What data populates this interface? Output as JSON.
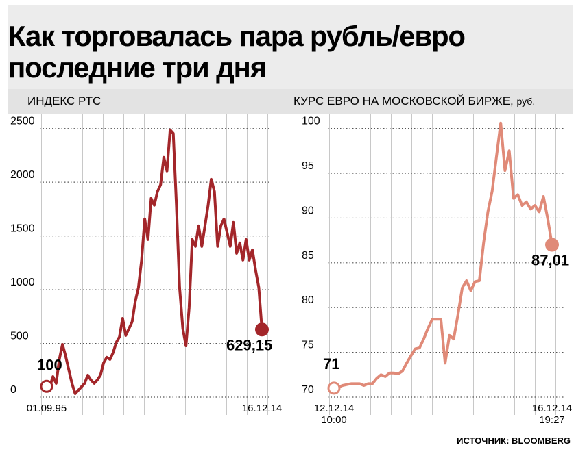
{
  "title": "Как торговалась пара рубль/евро последние три дня",
  "source": "ИСТОЧНИК: BLOOMBERG",
  "chart_data": [
    {
      "type": "line",
      "subtitle": "ИНДЕКС РТС",
      "color": "#a3262a",
      "categories": [
        "01.09.95",
        null,
        null,
        null,
        null,
        null,
        null,
        null,
        null,
        null,
        null,
        null,
        null,
        null,
        null,
        null,
        null,
        null,
        null,
        null,
        null,
        null,
        null,
        null,
        null,
        null,
        null,
        null,
        null,
        null,
        null,
        null,
        null,
        null,
        null,
        null,
        null,
        null,
        null,
        null,
        null,
        null,
        null,
        null,
        null,
        null,
        null,
        null,
        null,
        null,
        null,
        null,
        null,
        null,
        null,
        null,
        null,
        null,
        null,
        null,
        null,
        null,
        null,
        null,
        null,
        null,
        null,
        null,
        "16.12.14"
      ],
      "values": [
        100,
        96,
        191,
        128,
        351,
        491,
        383,
        255,
        128,
        32,
        64,
        96,
        128,
        204,
        159,
        128,
        159,
        204,
        319,
        370,
        351,
        415,
        510,
        561,
        733,
        574,
        638,
        702,
        893,
        1020,
        1276,
        1658,
        1467,
        1849,
        1786,
        1913,
        1977,
        2232,
        2105,
        2487,
        2455,
        1786,
        1020,
        638,
        478,
        829,
        1467,
        1403,
        1594,
        1403,
        1594,
        1786,
        2028,
        1913,
        1403,
        1594,
        1658,
        1531,
        1403,
        1626,
        1339,
        1435,
        1276,
        1467,
        1276,
        1371,
        1180,
        1020,
        629.15
      ],
      "value_labels": [
        "100",
        null,
        null,
        null,
        null,
        null,
        null,
        null,
        null,
        null,
        null,
        null,
        null,
        null,
        null,
        null,
        null,
        null,
        null,
        null,
        null,
        null,
        null,
        null,
        null,
        null,
        null,
        null,
        null,
        null,
        null,
        null,
        null,
        null,
        null,
        null,
        null,
        null,
        null,
        null,
        null,
        null,
        null,
        null,
        null,
        null,
        null,
        null,
        null,
        null,
        null,
        null,
        null,
        null,
        null,
        null,
        null,
        null,
        null,
        null,
        null,
        null,
        null,
        null,
        null,
        null,
        null,
        null,
        "629,15"
      ],
      "ylim": [
        0,
        2600
      ],
      "yticks": [
        0,
        500,
        1000,
        1500,
        2000,
        2500
      ],
      "grid": true
    },
    {
      "type": "line",
      "subtitle": "КУРС ЕВРО НА МОСКОВСКОЙ БИРЖЕ,",
      "unit": "руб.",
      "color": "#e08a78",
      "categories": [
        "12.12.14 10:00",
        null,
        null,
        null,
        null,
        null,
        null,
        null,
        null,
        null,
        null,
        null,
        null,
        null,
        null,
        null,
        null,
        null,
        null,
        null,
        null,
        null,
        null,
        null,
        null,
        null,
        null,
        null,
        null,
        null,
        null,
        null,
        null,
        null,
        null,
        null,
        null,
        null,
        null,
        null,
        null,
        null,
        null,
        null,
        null,
        null,
        null,
        null,
        null,
        null,
        null,
        "16.12.14 19:27"
      ],
      "values": [
        71,
        71.1,
        71.3,
        71.4,
        71.5,
        71.5,
        71.5,
        71.3,
        71.5,
        71.5,
        72.1,
        72.5,
        72.3,
        72.7,
        72.7,
        72.6,
        72.9,
        73.8,
        74.6,
        75.4,
        75.5,
        76.5,
        77.7,
        78.7,
        78.7,
        78.7,
        73.8,
        76.9,
        76.5,
        79.2,
        82.2,
        83.0,
        81.9,
        82.9,
        83.0,
        87.2,
        90.7,
        93.0,
        96.8,
        100.6,
        95.3,
        97.5,
        92.2,
        92.6,
        91.4,
        91.8,
        91.0,
        91.4,
        90.7,
        92.4,
        89.9,
        87.01
      ],
      "value_labels": [
        "71",
        null,
        null,
        null,
        null,
        null,
        null,
        null,
        null,
        null,
        null,
        null,
        null,
        null,
        null,
        null,
        null,
        null,
        null,
        null,
        null,
        null,
        null,
        null,
        null,
        null,
        null,
        null,
        null,
        null,
        null,
        null,
        null,
        null,
        null,
        null,
        null,
        null,
        null,
        null,
        null,
        null,
        null,
        null,
        null,
        null,
        null,
        null,
        null,
        null,
        null,
        "87,01"
      ],
      "ylim": [
        70,
        101.5
      ],
      "yticks": [
        70,
        75,
        80,
        85,
        90,
        95,
        100
      ],
      "grid": true
    }
  ]
}
